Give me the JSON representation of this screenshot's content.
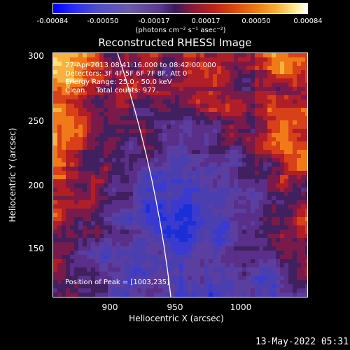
{
  "colorbar": {
    "ticks": [
      "-0.00084",
      "-0.00050",
      "-0.00017",
      "0.00017",
      "0.00050",
      "0.00084"
    ],
    "units": "(photons cm⁻² s⁻¹ asec⁻²)"
  },
  "title": "Reconstructed RHESSI Image",
  "info": {
    "line1": "27-Apr-2013 08:41:16.000 to 08:42:00.000",
    "line2": "Detectors: 3F 4F 5F 6F 7F 8F, Att 0",
    "line3": "Energy Range: 25.0 - 50.0 keV",
    "line4": "Clean     Total counts: 977.",
    "peak": "Position of Peak = [1003,235]"
  },
  "axes": {
    "xlabel": "Heliocentric X (arcsec)",
    "ylabel": "Heliocentric Y (arcsec)",
    "xticks": [
      "900",
      "950",
      "1000"
    ],
    "yticks": [
      "300",
      "250",
      "200",
      "150"
    ]
  },
  "timestamp": "13-May-2022 05:31"
}
